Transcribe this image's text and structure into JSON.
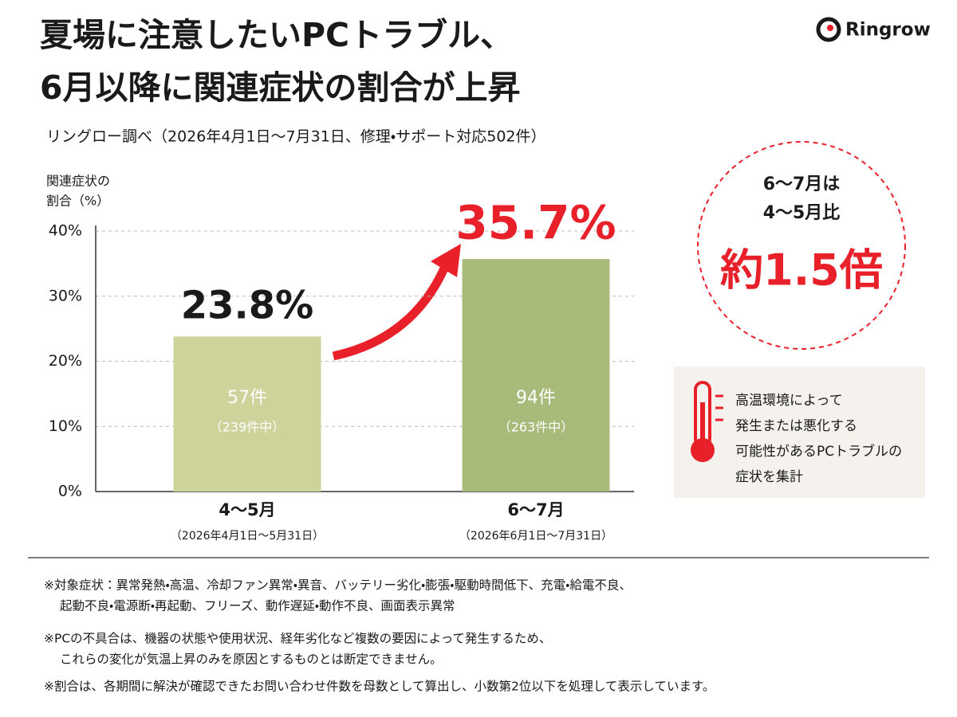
{
  "brand": "Ringrow",
  "chart_data": {
    "type": "bar",
    "title": [
      "夏場に注意したいPCトラブル、",
      "6月以降に関連症状の割合が上昇"
    ],
    "subtitle": "リングロー調べ（2026年4月1日～7月31日、修理・サポート対応502件）",
    "y_label": [
      "関連症状の",
      "割合（%）"
    ],
    "categories": [
      "4～5月",
      "6～7月"
    ],
    "category_periods": [
      "（2026年4月1日～5月31日）",
      "（2026年6月1日～7月31日）"
    ],
    "values": [
      23.8,
      35.7
    ],
    "value_labels": [
      "23.8%",
      "35.7%"
    ],
    "value_label_colors": [
      "#1a1a1a",
      "#e8202a"
    ],
    "counts": [
      "57件",
      "94件"
    ],
    "totals": [
      "（239件中）",
      "（263件中）"
    ],
    "colors": [
      "#cdd39b",
      "#a9bb7b"
    ],
    "ylim": [
      0,
      40
    ],
    "yticks": [
      {
        "value": 0,
        "label": "0%"
      },
      {
        "value": 10,
        "label": "10%"
      },
      {
        "value": 20,
        "label": "20%"
      },
      {
        "value": 30,
        "label": "30%"
      },
      {
        "value": 40,
        "label": "40%"
      }
    ],
    "grid": true
  },
  "callout": {
    "lines": [
      "6～7月は",
      "4～5月比"
    ],
    "ratio": "約1.5倍"
  },
  "info_box": {
    "lines": [
      "高温環境によって",
      "発生または悪化する",
      "可能性があるPCトラブルの",
      "症状を集計"
    ]
  },
  "notes": [
    [
      "※対象症状：異常発熱・高温、冷却ファン異常・異音、バッテリー劣化・膨張・駆動時間低下、充電・給電不良、",
      "起動不良・電源断・再起動、フリーズ、動作遅延・動作不良、画面表示異常"
    ],
    [
      "※PCの不具合は、機器の状態や使用状況、経年劣化など複数の要因によって発生するため、",
      "これらの変化が気温上昇のみを原因とするものとは断定できません。"
    ],
    [
      "※割合は、各期間に解決が確認できたお問い合わせ件数を母数として算出し、小数第2位以下を処理して表示しています。"
    ]
  ]
}
